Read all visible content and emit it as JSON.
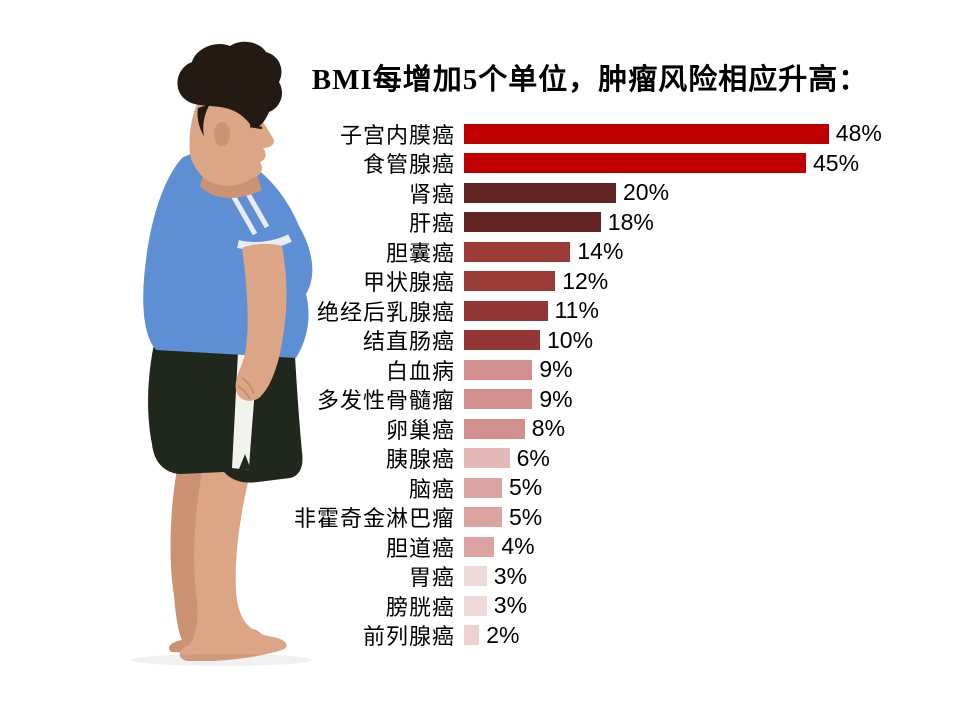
{
  "chart_data": {
    "type": "bar",
    "orientation": "horizontal",
    "title": "BMI每增加5个单位，肿瘤风险相应升高：",
    "xlabel": "",
    "ylabel": "",
    "xlim": [
      0,
      50
    ],
    "grid": false,
    "legend": "none",
    "value_label_position": "end-of-bar",
    "unit": "%",
    "categories": [
      "子宫内膜癌",
      "食管腺癌",
      "肾癌",
      "肝癌",
      "胆囊癌",
      "甲状腺癌",
      "绝经后乳腺癌",
      "结直肠癌",
      "白血病",
      "多发性骨髓瘤",
      "卵巢癌",
      "胰腺癌",
      "脑癌",
      "非霍奇金淋巴瘤",
      "胆道癌",
      "胃癌",
      "膀胱癌",
      "前列腺癌"
    ],
    "values": [
      48,
      45,
      20,
      18,
      14,
      12,
      11,
      10,
      9,
      9,
      8,
      6,
      5,
      5,
      4,
      3,
      3,
      2
    ],
    "value_labels": [
      "48%",
      "45%",
      "20%",
      "18%",
      "14%",
      "12%",
      "11%",
      "10%",
      "9%",
      "9%",
      "8%",
      "6%",
      "5%",
      "5%",
      "4%",
      "3%",
      "3%",
      "2%"
    ],
    "bar_colors": [
      "#C00000",
      "#C00000",
      "#622423",
      "#622423",
      "#9A3B36",
      "#9A3B36",
      "#943634",
      "#943634",
      "#D28F8D",
      "#D28F8D",
      "#D28F8D",
      "#E5B9B7",
      "#DCA3A1",
      "#DCA3A1",
      "#DCA3A1",
      "#F0DAD9",
      "#F0DAD9",
      "#EDD2D1"
    ]
  },
  "figure": {
    "description": "side profile photo of an obese boy, blue t-shirt, dark shorts, barefoot",
    "palette": {
      "skin": "#DCA585",
      "skin_shade": "#CB9273",
      "hair": "#241A14",
      "shirt": "#5E8FD4",
      "shirt_stripe": "#E9EDF3",
      "collar": "#D8E2F0",
      "shorts": "#20281E",
      "shorts_stripe": "#F2F2EE"
    }
  }
}
